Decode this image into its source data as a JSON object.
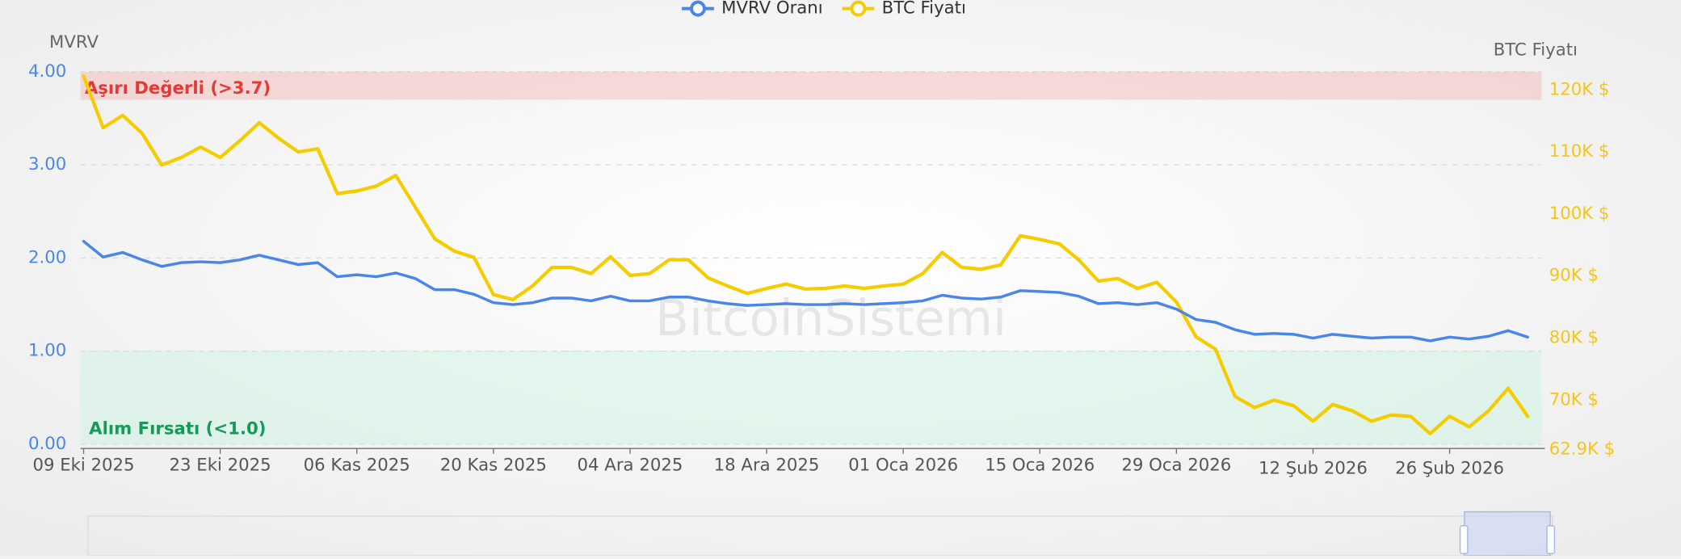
{
  "chart_data": {
    "type": "line",
    "legend_position": "top",
    "grid": true,
    "y_axis_title": "MVRV",
    "y2_axis_title": "BTC Fiyatı",
    "watermark": "BitcoinSistemi",
    "x": [
      "09 Eki 2025",
      "11 Eki 2025",
      "13 Eki 2025",
      "15 Eki 2025",
      "17 Eki 2025",
      "19 Eki 2025",
      "21 Eki 2025",
      "23 Eki 2025",
      "25 Eki 2025",
      "27 Eki 2025",
      "29 Eki 2025",
      "31 Eki 2025",
      "02 Kas 2025",
      "04 Kas 2025",
      "06 Kas 2025",
      "08 Kas 2025",
      "10 Kas 2025",
      "12 Kas 2025",
      "14 Kas 2025",
      "16 Kas 2025",
      "18 Kas 2025",
      "20 Kas 2025",
      "22 Kas 2025",
      "24 Kas 2025",
      "26 Kas 2025",
      "28 Kas 2025",
      "30 Kas 2025",
      "02 Ara 2025",
      "04 Ara 2025",
      "06 Ara 2025",
      "08 Ara 2025",
      "10 Ara 2025",
      "12 Ara 2025",
      "14 Ara 2025",
      "16 Ara 2025",
      "18 Ara 2025",
      "20 Ara 2025",
      "22 Ara 2025",
      "24 Ara 2025",
      "26 Ara 2025",
      "28 Ara 2025",
      "30 Ara 2025",
      "01 Oca 2026",
      "03 Oca 2026",
      "05 Oca 2026",
      "07 Oca 2026",
      "09 Oca 2026",
      "11 Oca 2026",
      "13 Oca 2026",
      "15 Oca 2026",
      "17 Oca 2026",
      "19 Oca 2026",
      "21 Oca 2026",
      "23 Oca 2026",
      "25 Oca 2026",
      "27 Oca 2026",
      "29 Oca 2026",
      "31 Oca 2026",
      "02 Şub 2026",
      "04 Şub 2026",
      "06 Şub 2026",
      "08 Şub 2026",
      "10 Şub 2026",
      "12 Şub 2026",
      "14 Şub 2026",
      "16 Şub 2026",
      "18 Şub 2026",
      "20 Şub 2026",
      "22 Şub 2026",
      "24 Şub 2026",
      "26 Şub 2026",
      "28 Şub 2026",
      "02 Mar 2026",
      "04 Mar 2026",
      "06 Mar 2026"
    ],
    "xticks": [
      "09 Eki 2025",
      "23 Eki 2025",
      "06 Kas 2025",
      "20 Kas 2025",
      "04 Ara 2025",
      "18 Ara 2025",
      "01 Oca 2026",
      "15 Oca 2026",
      "29 Oca 2026",
      "12 Şub 2026",
      "26 Şub 2026"
    ],
    "ylim": [
      0,
      4
    ],
    "yticks": [
      {
        "value": 0,
        "label": "0.00"
      },
      {
        "value": 1,
        "label": "1.00"
      },
      {
        "value": 2,
        "label": "2.00"
      },
      {
        "value": 3,
        "label": "3.00"
      },
      {
        "value": 4,
        "label": "4.00"
      }
    ],
    "y2lim": [
      62900,
      122900
    ],
    "y2ticks": [
      {
        "value": 62900,
        "label": "62.9K $"
      },
      {
        "value": 70000,
        "label": "70K $"
      },
      {
        "value": 80000,
        "label": "80K $"
      },
      {
        "value": 90000,
        "label": "90K $"
      },
      {
        "value": 100000,
        "label": "100K $"
      },
      {
        "value": 110000,
        "label": "110K $"
      },
      {
        "value": 120000,
        "label": "120K $"
      }
    ],
    "zones": [
      {
        "label": "Aşırı Değerli (>3.7)",
        "from": 3.7,
        "to": 4,
        "color": "#f3b6b6",
        "text_color": "#e53935"
      },
      {
        "label": "Alım Fırsatı (<1.0)",
        "from": 0,
        "to": 1,
        "color": "#c8f5df",
        "text_color": "#169a5a"
      }
    ],
    "series": [
      {
        "name": "MVRV Oranı",
        "color": "#4a86e8",
        "axis": "y",
        "values": [
          2.18,
          2.01,
          2.06,
          1.98,
          1.91,
          1.95,
          1.96,
          1.95,
          1.98,
          2.03,
          1.98,
          1.93,
          1.95,
          1.8,
          1.82,
          1.8,
          1.84,
          1.78,
          1.66,
          1.66,
          1.61,
          1.52,
          1.5,
          1.52,
          1.57,
          1.57,
          1.54,
          1.59,
          1.54,
          1.54,
          1.58,
          1.58,
          1.54,
          1.51,
          1.49,
          1.5,
          1.51,
          1.5,
          1.5,
          1.51,
          1.5,
          1.51,
          1.52,
          1.54,
          1.6,
          1.57,
          1.56,
          1.58,
          1.65,
          1.64,
          1.63,
          1.59,
          1.51,
          1.52,
          1.5,
          1.52,
          1.45,
          1.34,
          1.31,
          1.23,
          1.18,
          1.19,
          1.18,
          1.14,
          1.18,
          1.16,
          1.14,
          1.15,
          1.15,
          1.11,
          1.15,
          1.13,
          1.16,
          1.22,
          1.15
        ]
      },
      {
        "name": "BTC Fiyatı",
        "color": "#f5cc00",
        "axis": "y2",
        "values": [
          122200,
          113900,
          115900,
          113000,
          107900,
          109100,
          110800,
          109100,
          111800,
          114700,
          112200,
          110000,
          110500,
          103300,
          103700,
          104500,
          106200,
          101100,
          96000,
          94000,
          93000,
          87000,
          86200,
          88400,
          91400,
          91400,
          90400,
          93100,
          90100,
          90400,
          92600,
          92600,
          89700,
          88400,
          87200,
          88000,
          88700,
          87900,
          88000,
          88400,
          88000,
          88400,
          88700,
          90400,
          93800,
          91400,
          91100,
          91800,
          96500,
          95900,
          95200,
          92600,
          89200,
          89600,
          88000,
          89000,
          85800,
          80200,
          78200,
          70600,
          68800,
          70000,
          69100,
          66600,
          69300,
          68300,
          66600,
          67600,
          67400,
          64600,
          67400,
          65700,
          68300,
          71900,
          67400
        ]
      }
    ]
  }
}
